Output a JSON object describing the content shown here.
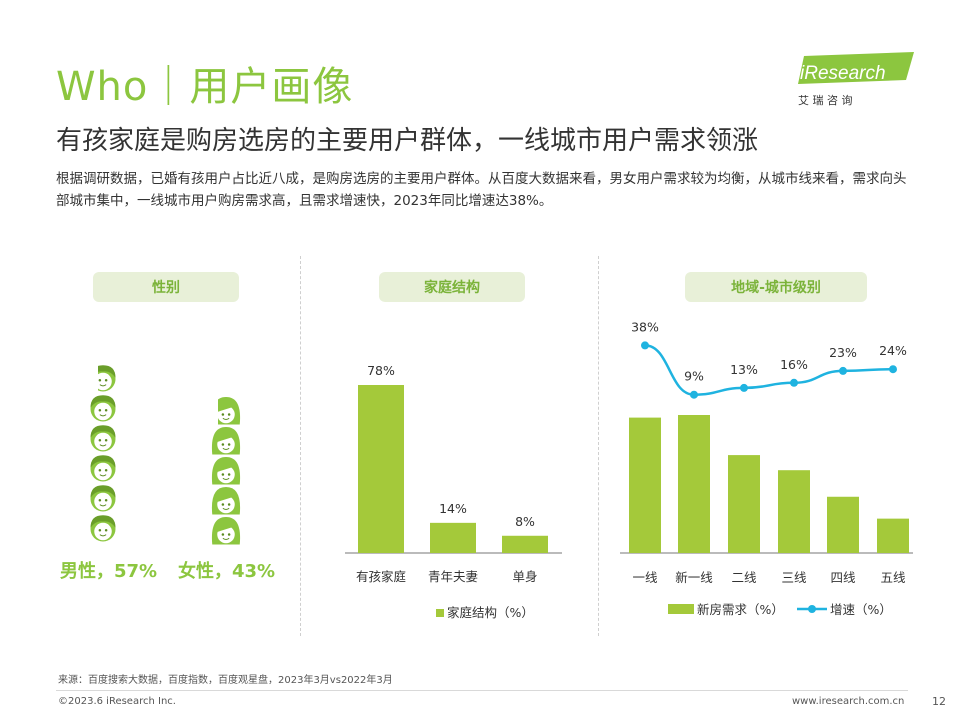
{
  "header": {
    "title": "Who｜用户画像",
    "subtitle": "有孩家庭是购房选房的主要用户群体，一线城市用户需求领涨",
    "description": "根据调研数据，已婚有孩用户占比近八成，是购房选房的主要用户群体。从百度大数据来看，男女用户需求较为均衡，从城市线来看，需求向头部城市集中，一线城市用户购房需求高，且需求增速快，2023年同比增速达38%。"
  },
  "logo": {
    "brand": "iResearch",
    "cn": "艾 瑞 咨 询"
  },
  "sections": {
    "gender": "性别",
    "family": "家庭结构",
    "region": "地域-城市级别"
  },
  "gender": {
    "male_label": "男性，57%",
    "female_label": "女性，43%",
    "male_share": 0.57,
    "female_share": 0.43
  },
  "colors": {
    "accent": "#8cc63f",
    "bar": "#a4c93a",
    "line": "#1fb3e0",
    "pill_bg": "#e8f0d8"
  },
  "chart_data": [
    {
      "type": "bar",
      "categories": [
        "有孩家庭",
        "青年夫妻",
        "单身"
      ],
      "series": [
        {
          "name": "家庭结构（%）",
          "values": [
            78,
            14,
            8
          ]
        }
      ],
      "data_labels": [
        "78%",
        "14%",
        "8%"
      ],
      "ylim": [
        0,
        100
      ],
      "legend": "bottom"
    },
    {
      "type": "bar",
      "categories": [
        "一线",
        "新一线",
        "二线",
        "三线",
        "四线",
        "五线"
      ],
      "series": [
        {
          "name": "新房需求（%）",
          "type": "bar",
          "values": [
            26,
            26.5,
            18.8,
            15.9,
            10.8,
            6.6
          ]
        },
        {
          "name": "增速（%）",
          "type": "line",
          "values": [
            38,
            9,
            13,
            16,
            23,
            24
          ],
          "labels": [
            "38%",
            "9%",
            "13%",
            "16%",
            "23%",
            "24%"
          ]
        }
      ],
      "legend": "bottom"
    }
  ],
  "footer": {
    "source": "来源：百度搜索大数据，百度指数，百度观星盘，2023年3月vs2022年3月",
    "copyright": "©2023.6 iResearch Inc.",
    "website": "www.iresearch.com.cn",
    "page": "12"
  }
}
